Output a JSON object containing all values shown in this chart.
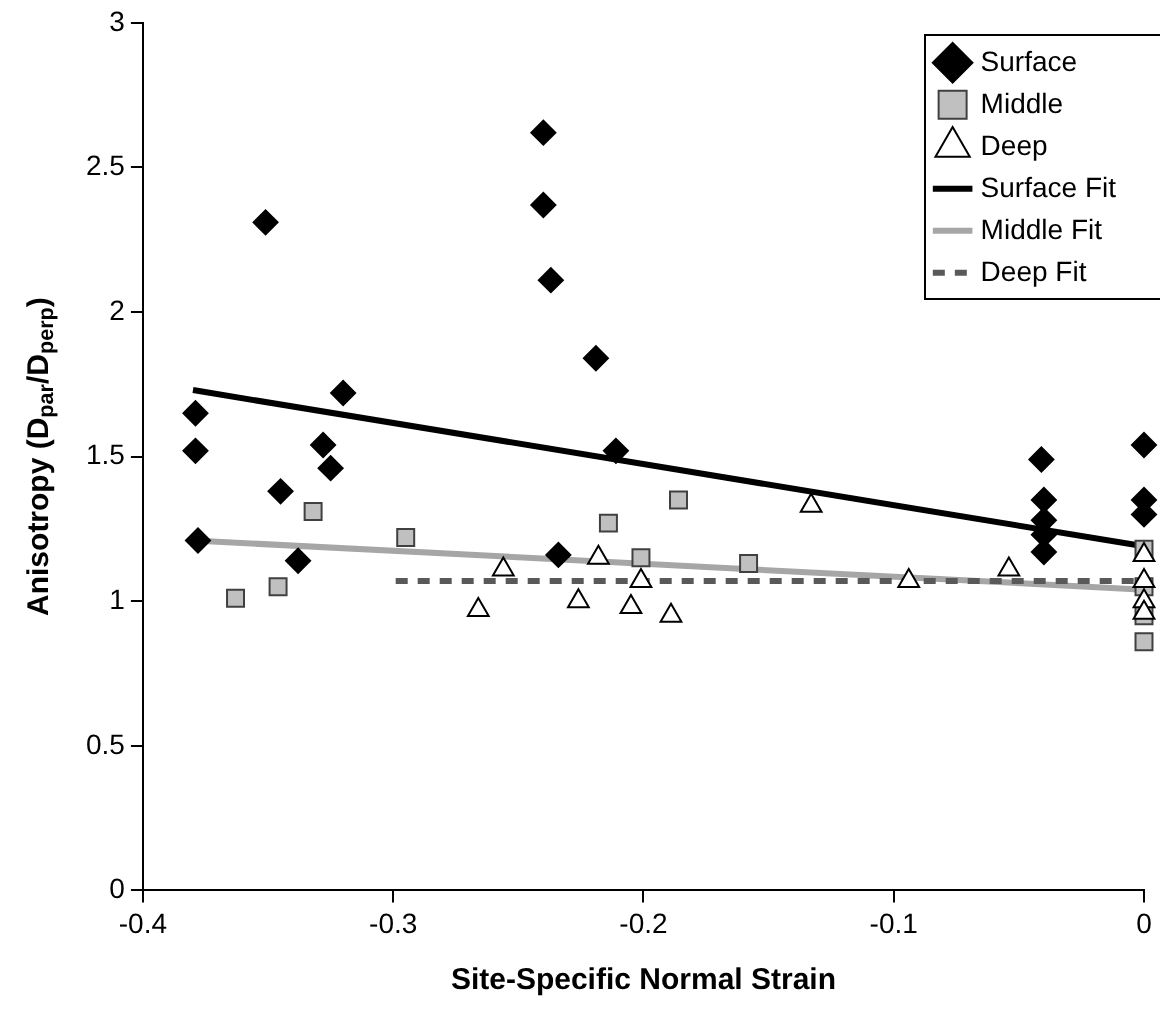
{
  "chart_data": {
    "type": "scatter",
    "xlabel": "Site-Specific Normal Strain",
    "ylabel": "Anisotropy (D$_{par}$/D$_{perp}$)",
    "xlim": [
      -0.4,
      0
    ],
    "xticks": [
      -0.4,
      -0.3,
      -0.2,
      -0.1,
      0
    ],
    "ylim": [
      0,
      3
    ],
    "yticks": [
      0,
      0.5,
      1,
      1.5,
      2,
      2.5,
      3
    ],
    "grid": false,
    "legend": "top right",
    "series": [
      {
        "name": "Surface",
        "type": "scatter",
        "marker": "diamond",
        "color": "#000000",
        "x": [
          -0.379,
          -0.379,
          -0.378,
          -0.351,
          -0.32,
          -0.328,
          -0.325,
          -0.345,
          -0.338,
          -0.24,
          -0.24,
          -0.237,
          -0.219,
          -0.211,
          -0.234,
          -0.041,
          -0.04,
          -0.04,
          -0.04,
          -0.04,
          0,
          0,
          0
        ],
        "values": [
          1.65,
          1.52,
          1.21,
          2.31,
          1.72,
          1.54,
          1.46,
          1.38,
          1.14,
          2.62,
          2.37,
          2.11,
          1.84,
          1.52,
          1.16,
          1.49,
          1.35,
          1.28,
          1.23,
          1.17,
          1.54,
          1.35,
          1.3
        ]
      },
      {
        "name": "Middle",
        "type": "scatter",
        "marker": "square",
        "color": "#c0c0c0",
        "x": [
          -0.332,
          -0.295,
          -0.363,
          -0.346,
          -0.214,
          -0.201,
          -0.186,
          -0.158,
          0,
          0,
          0,
          0
        ],
        "values": [
          1.31,
          1.22,
          1.01,
          1.05,
          1.27,
          1.15,
          1.35,
          1.13,
          1.18,
          1.05,
          0.95,
          0.86
        ]
      },
      {
        "name": "Deep",
        "type": "scatter",
        "marker": "triangle",
        "color": "#ffffff",
        "x": [
          -0.266,
          -0.256,
          -0.226,
          -0.218,
          -0.205,
          -0.201,
          -0.189,
          -0.133,
          -0.094,
          -0.054,
          0,
          0,
          0,
          0
        ],
        "values": [
          0.97,
          1.11,
          1.0,
          1.15,
          0.98,
          1.07,
          0.95,
          1.33,
          1.07,
          1.11,
          1.16,
          1.07,
          1.0,
          0.96
        ]
      },
      {
        "name": "Surface Fit",
        "type": "line",
        "marker": "none",
        "line_style": "solid",
        "color": "#000000",
        "x": [
          -0.38,
          0
        ],
        "values": [
          1.73,
          1.19
        ]
      },
      {
        "name": "Middle Fit",
        "type": "line",
        "marker": "none",
        "line_style": "solid",
        "color": "#a6a6a6",
        "x": [
          -0.38,
          0
        ],
        "values": [
          1.21,
          1.04
        ]
      },
      {
        "name": "Deep Fit",
        "type": "line",
        "marker": "none",
        "line_style": "dashed",
        "color": "#595959",
        "x": [
          -0.299,
          0
        ],
        "values": [
          1.07,
          1.07
        ]
      }
    ]
  }
}
